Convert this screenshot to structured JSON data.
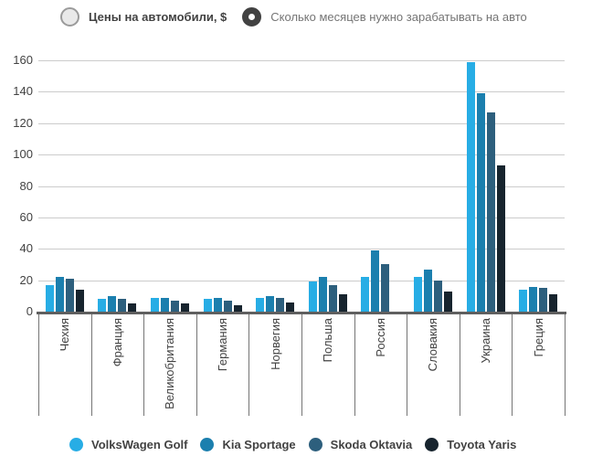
{
  "controls": {
    "options": [
      {
        "id": "prices",
        "label": "Цены на автомобили, $",
        "selected": false
      },
      {
        "id": "months",
        "label": "Сколько месяцев нужно зарабатывать на авто",
        "selected": true
      }
    ]
  },
  "colors": {
    "vw_blue": "#27ade5",
    "kia_blue": "#1b7fae",
    "skoda_teal": "#2d5f7d",
    "toyota_dark": "#17242e",
    "gridline": "#cccccc",
    "axis": "#5f5f5f",
    "divider": "#757575",
    "text": "#424242",
    "text_muted": "#757575",
    "radio_selected": "#424242",
    "radio_unselected_fill": "#e9e9e9",
    "radio_unselected_border": "#9b9b9b"
  },
  "chart_data": {
    "type": "bar",
    "title": "",
    "xlabel": "",
    "ylabel": "",
    "ylim": [
      0,
      160
    ],
    "yticks": [
      0,
      20,
      40,
      60,
      80,
      100,
      120,
      140,
      160
    ],
    "grid": true,
    "legend_position": "bottom",
    "categories": [
      "Чехия",
      "Франция",
      "Великобритания",
      "Германия",
      "Норвегия",
      "Польша",
      "Россия",
      "Словакия",
      "Украина",
      "Греция"
    ],
    "series": [
      {
        "name": "VolksWagen Golf",
        "color": "#27ade5",
        "values": [
          17,
          8,
          9,
          8,
          9,
          19,
          22,
          22,
          159,
          14
        ]
      },
      {
        "name": "Kia Sportage",
        "color": "#1b7fae",
        "values": [
          22,
          10,
          9,
          9,
          10,
          22,
          39,
          27,
          139,
          16
        ]
      },
      {
        "name": "Skoda Oktavia",
        "color": "#2d5f7d",
        "values": [
          21,
          8,
          7,
          7,
          9,
          17,
          30,
          20,
          127,
          15
        ]
      },
      {
        "name": "Toyota Yaris",
        "color": "#17242e",
        "values": [
          14,
          5,
          5,
          4,
          6,
          11,
          0,
          13,
          93,
          11
        ]
      }
    ]
  }
}
